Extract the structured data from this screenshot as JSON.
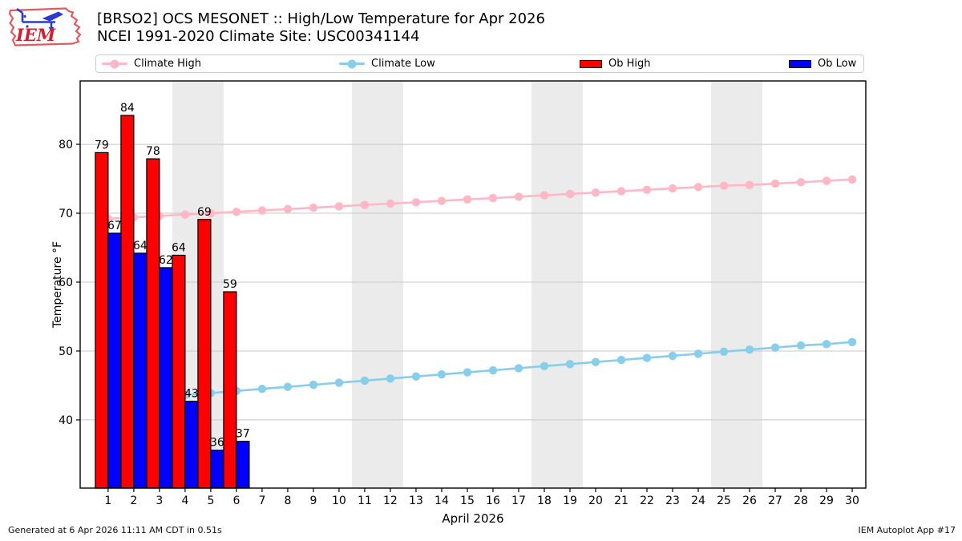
{
  "header": {
    "title_line1": "[BRSO2] OCS MESONET :: High/Low Temperature for Apr 2026",
    "title_line2": "NCEI 1991-2020 Climate Site: USC00341144",
    "logo_text": "IEM"
  },
  "legend": {
    "items": [
      {
        "label": "Climate High",
        "type": "line",
        "color": "#ffb7c5"
      },
      {
        "label": "Climate Low",
        "type": "line",
        "color": "#87ceeb"
      },
      {
        "label": "Ob High",
        "type": "box",
        "color": "#ff0000"
      },
      {
        "label": "Ob Low",
        "type": "box",
        "color": "#0000ff"
      }
    ]
  },
  "footer": {
    "left": "Generated at 6 Apr 2026 11:11 AM CDT in 0.51s",
    "right": "IEM Autoplot App #17"
  },
  "chart_data": {
    "type": "bar",
    "title": "[BRSO2] OCS MESONET :: High/Low Temperature for Apr 2026",
    "subtitle": "NCEI 1991-2020 Climate Site: USC00341144",
    "xlabel": "April 2026",
    "ylabel": "Temperature °F",
    "xlim": [
      -0.09,
      30.53
    ],
    "ylim": [
      30.1,
      89.2
    ],
    "yticks": [
      40,
      50,
      60,
      70,
      80
    ],
    "xticks": [
      1,
      2,
      3,
      4,
      5,
      6,
      7,
      8,
      9,
      10,
      11,
      12,
      13,
      14,
      15,
      16,
      17,
      18,
      19,
      20,
      21,
      22,
      23,
      24,
      25,
      26,
      27,
      28,
      29,
      30
    ],
    "grid": "horizontal",
    "legend_position": "top",
    "weekend_bands": [
      [
        3.5,
        5.5
      ],
      [
        10.5,
        12.5
      ],
      [
        17.5,
        19.5
      ],
      [
        24.5,
        26.5
      ]
    ],
    "colors": {
      "climate_high": "#ffb7c5",
      "climate_low": "#87ceeb",
      "ob_high": "#ff0000",
      "ob_low": "#0000ff",
      "band": "#ebebeb",
      "grid": "#c8c8c8",
      "frame": "#000000"
    },
    "series": [
      {
        "name": "Climate High",
        "type": "line",
        "color": "#ffb7c5",
        "x": [
          1,
          2,
          3,
          4,
          5,
          6,
          7,
          8,
          9,
          10,
          11,
          12,
          13,
          14,
          15,
          16,
          17,
          18,
          19,
          20,
          21,
          22,
          23,
          24,
          25,
          26,
          27,
          28,
          29,
          30
        ],
        "values": [
          69.2,
          69.4,
          69.6,
          69.8,
          70.0,
          70.2,
          70.4,
          70.6,
          70.8,
          71.0,
          71.2,
          71.4,
          71.6,
          71.8,
          72.0,
          72.2,
          72.4,
          72.6,
          72.8,
          73.0,
          73.2,
          73.4,
          73.6,
          73.8,
          74.0,
          74.1,
          74.3,
          74.5,
          74.7,
          74.9
        ]
      },
      {
        "name": "Climate Low",
        "type": "line",
        "color": "#87ceeb",
        "x": [
          1,
          2,
          3,
          4,
          5,
          6,
          7,
          8,
          9,
          10,
          11,
          12,
          13,
          14,
          15,
          16,
          17,
          18,
          19,
          20,
          21,
          22,
          23,
          24,
          25,
          26,
          27,
          28,
          29,
          30
        ],
        "values": [
          42.7,
          43.0,
          43.3,
          43.6,
          43.9,
          44.2,
          44.5,
          44.8,
          45.1,
          45.4,
          45.7,
          46.0,
          46.3,
          46.6,
          46.9,
          47.2,
          47.5,
          47.8,
          48.1,
          48.4,
          48.7,
          49.0,
          49.3,
          49.6,
          49.9,
          50.2,
          50.5,
          50.8,
          51.0,
          51.3
        ]
      },
      {
        "name": "Ob High",
        "type": "bar",
        "color": "#ff0000",
        "align": "left",
        "x": [
          1,
          2,
          3,
          4,
          5,
          6
        ],
        "values": [
          78.8,
          84.2,
          77.9,
          63.9,
          69.1,
          58.6
        ],
        "labels": [
          "79",
          "84",
          "78",
          "64",
          "69",
          "59"
        ]
      },
      {
        "name": "Ob Low",
        "type": "bar",
        "color": "#0000ff",
        "align": "right",
        "x": [
          1,
          2,
          3,
          4,
          5,
          6
        ],
        "values": [
          67.1,
          64.2,
          62.1,
          42.7,
          35.6,
          36.9
        ],
        "labels": [
          "67",
          "64",
          "62",
          "43",
          "36",
          "37"
        ]
      }
    ]
  }
}
